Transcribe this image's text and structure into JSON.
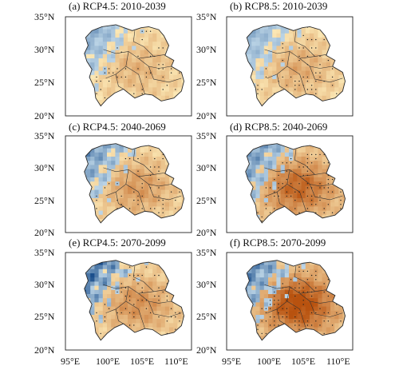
{
  "panels": [
    {
      "title": "(a) RCP4.5: 2010-2039",
      "scenario": "RCP4.5",
      "period": "2010-2039",
      "intensity": 0.3,
      "blue": 0.35
    },
    {
      "title": "(b) RCP8.5: 2010-2039",
      "scenario": "RCP8.5",
      "period": "2010-2039",
      "intensity": 0.35,
      "blue": 0.3
    },
    {
      "title": "(c) RCP4.5: 2040-2069",
      "scenario": "RCP4.5",
      "period": "2040-2069",
      "intensity": 0.45,
      "blue": 0.55
    },
    {
      "title": "(d) RCP8.5: 2040-2069",
      "scenario": "RCP8.5",
      "period": "2040-2069",
      "intensity": 0.75,
      "blue": 0.55
    },
    {
      "title": "(e) RCP4.5: 2070-2099",
      "scenario": "RCP4.5",
      "period": "2070-2099",
      "intensity": 0.5,
      "blue": 0.9
    },
    {
      "title": "(f) RCP8.5: 2070-2099",
      "scenario": "RCP8.5",
      "period": "2070-2099",
      "intensity": 0.95,
      "blue": 0.7
    }
  ],
  "lat_ticks": [
    "35°N",
    "30°N",
    "25°N",
    "20°N"
  ],
  "lon_ticks": [
    "95°E",
    "100°E",
    "105°E",
    "110°E"
  ],
  "extent": {
    "lon": [
      95,
      112
    ],
    "lat": [
      20,
      35
    ]
  },
  "colors": {
    "warm_light": "#fbe7b4",
    "warm_dark": "#b8520f",
    "cool_light": "#d8ecf6",
    "cool_dark": "#1b4f8c",
    "stipple": "#222222"
  }
}
